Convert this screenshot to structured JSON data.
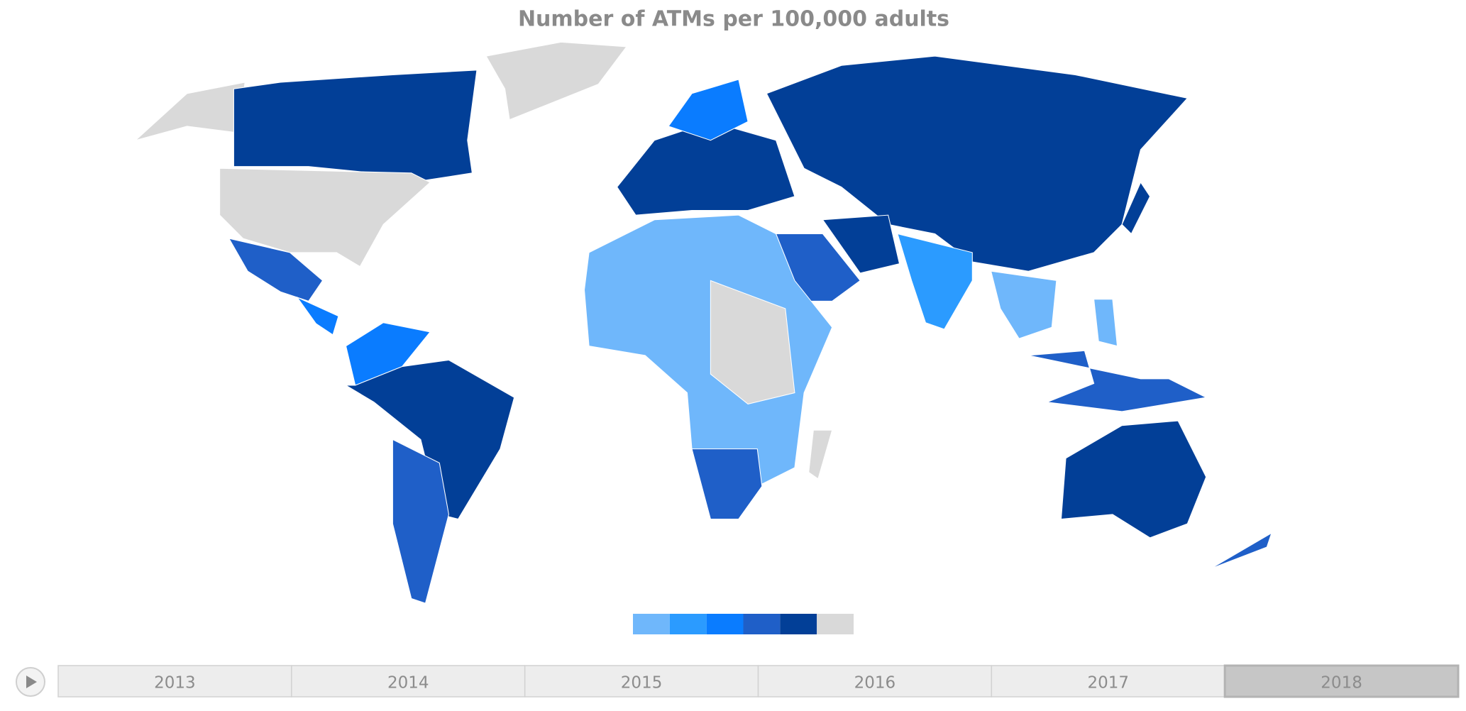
{
  "title": "Number of ATMs per 100,000 adults",
  "legend": {
    "colors": [
      "#6fb7fb",
      "#2b9bff",
      "#0a7cff",
      "#1f5fc8",
      "#023f97",
      "#d9d9d9"
    ]
  },
  "timeline": {
    "years": [
      "2013",
      "2014",
      "2015",
      "2016",
      "2017",
      "2018"
    ],
    "selected_year": "2018"
  }
}
